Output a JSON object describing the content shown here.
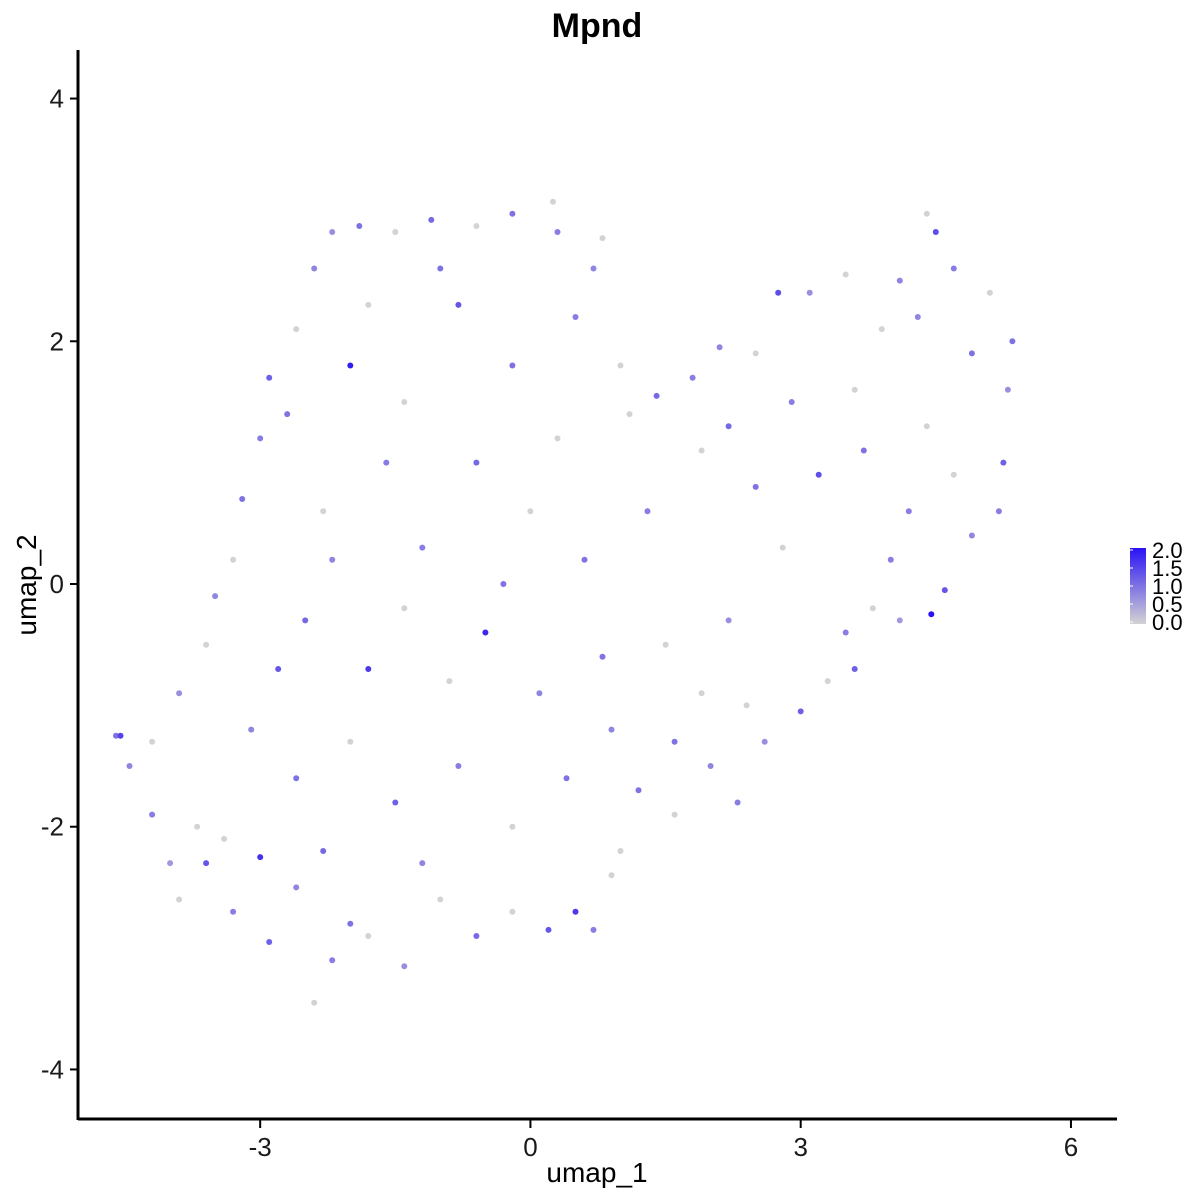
{
  "chart_data": {
    "type": "scatter",
    "title": "Mpnd",
    "xlabel": "umap_1",
    "ylabel": "umap_2",
    "xlim": [
      -5.0,
      6.5
    ],
    "ylim": [
      -4.4,
      4.4
    ],
    "x_ticks": [
      -3,
      0,
      3,
      6
    ],
    "x_tick_labels": [
      "-3",
      "0",
      "3",
      "6"
    ],
    "y_ticks": [
      -4,
      -2,
      0,
      2,
      4
    ],
    "y_tick_labels": [
      "-4",
      "-2",
      "0",
      "2",
      "4"
    ],
    "grid": false,
    "legend_position": "right",
    "color_scale": {
      "low_color": "#d3d3d3",
      "high_color": "#2a13f5",
      "min": 0.0,
      "max": 2.0,
      "breaks": [
        0.0,
        0.5,
        1.0,
        1.5,
        2.0
      ],
      "labels": [
        "0.0",
        "0.5",
        "1.0",
        "1.5",
        "2.0"
      ]
    },
    "points": [
      {
        "x": -4.6,
        "y": -1.25,
        "v": 1.0
      },
      {
        "x": -4.55,
        "y": -1.25,
        "v": 1.5
      },
      {
        "x": -4.45,
        "y": -1.5,
        "v": 0.8
      },
      {
        "x": -4.2,
        "y": -1.9,
        "v": 0.9
      },
      {
        "x": -4.0,
        "y": -2.3,
        "v": 0.6
      },
      {
        "x": -3.9,
        "y": -2.6,
        "v": 0.0
      },
      {
        "x": -3.6,
        "y": -2.3,
        "v": 1.3
      },
      {
        "x": -3.4,
        "y": -2.1,
        "v": 0.0
      },
      {
        "x": -3.0,
        "y": -2.25,
        "v": 1.7
      },
      {
        "x": -2.9,
        "y": -2.95,
        "v": 1.2
      },
      {
        "x": -2.6,
        "y": -2.5,
        "v": 0.8
      },
      {
        "x": -2.4,
        "y": -3.45,
        "v": 0.0
      },
      {
        "x": -2.2,
        "y": -3.1,
        "v": 0.9
      },
      {
        "x": -2.0,
        "y": -2.8,
        "v": 1.0
      },
      {
        "x": -1.8,
        "y": -2.9,
        "v": 0.0
      },
      {
        "x": -1.4,
        "y": -3.15,
        "v": 0.7
      },
      {
        "x": -1.0,
        "y": -2.6,
        "v": 0.0
      },
      {
        "x": -0.6,
        "y": -2.9,
        "v": 1.1
      },
      {
        "x": -0.2,
        "y": -2.7,
        "v": 0.0
      },
      {
        "x": 0.2,
        "y": -2.85,
        "v": 1.3
      },
      {
        "x": 0.5,
        "y": -2.7,
        "v": 1.6
      },
      {
        "x": 0.7,
        "y": -2.85,
        "v": 0.9
      },
      {
        "x": 1.0,
        "y": -2.2,
        "v": 0.0
      },
      {
        "x": 1.2,
        "y": -1.7,
        "v": 1.0
      },
      {
        "x": 1.6,
        "y": -1.9,
        "v": 0.0
      },
      {
        "x": 2.0,
        "y": -1.5,
        "v": 0.8
      },
      {
        "x": 2.3,
        "y": -1.8,
        "v": 0.9
      },
      {
        "x": 2.6,
        "y": -1.3,
        "v": 0.7
      },
      {
        "x": 3.0,
        "y": -1.05,
        "v": 1.2
      },
      {
        "x": 3.3,
        "y": -0.8,
        "v": 0.0
      },
      {
        "x": 3.5,
        "y": -0.4,
        "v": 0.9
      },
      {
        "x": 3.8,
        "y": -0.2,
        "v": 0.0
      },
      {
        "x": 4.1,
        "y": -0.3,
        "v": 0.6
      },
      {
        "x": 4.45,
        "y": -0.25,
        "v": 2.0
      },
      {
        "x": 4.6,
        "y": -0.05,
        "v": 1.3
      },
      {
        "x": 4.9,
        "y": 0.4,
        "v": 0.8
      },
      {
        "x": 5.2,
        "y": 0.6,
        "v": 0.9
      },
      {
        "x": 5.25,
        "y": 1.0,
        "v": 1.2
      },
      {
        "x": 5.3,
        "y": 1.6,
        "v": 0.7
      },
      {
        "x": 5.35,
        "y": 2.0,
        "v": 1.0
      },
      {
        "x": 5.1,
        "y": 2.4,
        "v": 0.0
      },
      {
        "x": 4.7,
        "y": 2.6,
        "v": 0.9
      },
      {
        "x": 4.5,
        "y": 2.9,
        "v": 1.4
      },
      {
        "x": 4.4,
        "y": 3.05,
        "v": 0.0
      },
      {
        "x": 4.1,
        "y": 2.5,
        "v": 0.8
      },
      {
        "x": 3.9,
        "y": 2.1,
        "v": 0.0
      },
      {
        "x": 3.5,
        "y": 2.55,
        "v": 0.0
      },
      {
        "x": 3.1,
        "y": 2.4,
        "v": 0.7
      },
      {
        "x": 2.75,
        "y": 2.4,
        "v": 1.4
      },
      {
        "x": 2.5,
        "y": 1.9,
        "v": 0.0
      },
      {
        "x": 2.1,
        "y": 1.95,
        "v": 0.8
      },
      {
        "x": 1.8,
        "y": 1.7,
        "v": 0.9
      },
      {
        "x": 1.4,
        "y": 1.55,
        "v": 1.1
      },
      {
        "x": 1.0,
        "y": 1.8,
        "v": 0.0
      },
      {
        "x": 0.7,
        "y": 2.6,
        "v": 0.8
      },
      {
        "x": 0.8,
        "y": 2.85,
        "v": 0.0
      },
      {
        "x": 0.3,
        "y": 2.9,
        "v": 0.9
      },
      {
        "x": 0.25,
        "y": 3.15,
        "v": 0.0
      },
      {
        "x": -0.2,
        "y": 3.05,
        "v": 1.0
      },
      {
        "x": -0.6,
        "y": 2.95,
        "v": 0.0
      },
      {
        "x": -1.1,
        "y": 3.0,
        "v": 1.1
      },
      {
        "x": -1.5,
        "y": 2.9,
        "v": 0.0
      },
      {
        "x": -1.9,
        "y": 2.95,
        "v": 1.0
      },
      {
        "x": -2.2,
        "y": 2.9,
        "v": 0.7
      },
      {
        "x": -2.4,
        "y": 2.6,
        "v": 0.8
      },
      {
        "x": -2.6,
        "y": 2.1,
        "v": 0.0
      },
      {
        "x": -2.9,
        "y": 1.7,
        "v": 1.2
      },
      {
        "x": -3.0,
        "y": 1.2,
        "v": 0.9
      },
      {
        "x": -3.2,
        "y": 0.7,
        "v": 1.0
      },
      {
        "x": -3.3,
        "y": 0.2,
        "v": 0.0
      },
      {
        "x": -3.5,
        "y": -0.1,
        "v": 0.8
      },
      {
        "x": -3.6,
        "y": -0.5,
        "v": 0.0
      },
      {
        "x": -3.9,
        "y": -0.9,
        "v": 0.7
      },
      {
        "x": -4.2,
        "y": -1.3,
        "v": 0.0
      },
      {
        "x": -2.0,
        "y": 1.8,
        "v": 1.9
      },
      {
        "x": -1.4,
        "y": 1.5,
        "v": 0.0
      },
      {
        "x": -0.8,
        "y": 2.3,
        "v": 1.3
      },
      {
        "x": -0.5,
        "y": -0.4,
        "v": 1.8
      },
      {
        "x": -0.2,
        "y": 1.8,
        "v": 1.0
      },
      {
        "x": 0.3,
        "y": 1.2,
        "v": 0.0
      },
      {
        "x": -1.2,
        "y": 0.3,
        "v": 0.9
      },
      {
        "x": -2.5,
        "y": -0.3,
        "v": 1.1
      },
      {
        "x": -1.8,
        "y": -0.7,
        "v": 1.6
      },
      {
        "x": -0.9,
        "y": -0.8,
        "v": 0.0
      },
      {
        "x": 0.1,
        "y": -0.9,
        "v": 0.8
      },
      {
        "x": 0.8,
        "y": -0.6,
        "v": 1.0
      },
      {
        "x": 1.5,
        "y": -0.5,
        "v": 0.0
      },
      {
        "x": 2.2,
        "y": -0.3,
        "v": 0.7
      },
      {
        "x": 2.8,
        "y": 0.3,
        "v": 0.0
      },
      {
        "x": 3.2,
        "y": 0.9,
        "v": 1.4
      },
      {
        "x": 3.7,
        "y": 1.1,
        "v": 1.0
      },
      {
        "x": 4.2,
        "y": 0.6,
        "v": 0.9
      },
      {
        "x": 4.4,
        "y": 1.3,
        "v": 0.0
      },
      {
        "x": 2.5,
        "y": 0.8,
        "v": 1.0
      },
      {
        "x": 1.9,
        "y": 1.1,
        "v": 0.0
      },
      {
        "x": 1.3,
        "y": 0.6,
        "v": 0.9
      },
      {
        "x": 0.6,
        "y": 0.2,
        "v": 1.0
      },
      {
        "x": 0.0,
        "y": 0.6,
        "v": 0.0
      },
      {
        "x": -0.6,
        "y": 1.0,
        "v": 1.1
      },
      {
        "x": -1.6,
        "y": 1.0,
        "v": 0.9
      },
      {
        "x": -2.3,
        "y": 0.6,
        "v": 0.0
      },
      {
        "x": -2.8,
        "y": -0.7,
        "v": 1.3
      },
      {
        "x": -3.1,
        "y": -1.2,
        "v": 0.8
      },
      {
        "x": -2.6,
        "y": -1.6,
        "v": 1.0
      },
      {
        "x": -2.0,
        "y": -1.3,
        "v": 0.0
      },
      {
        "x": -1.5,
        "y": -1.8,
        "v": 1.2
      },
      {
        "x": -0.8,
        "y": -1.5,
        "v": 0.9
      },
      {
        "x": -0.2,
        "y": -2.0,
        "v": 0.0
      },
      {
        "x": 0.4,
        "y": -1.6,
        "v": 1.0
      },
      {
        "x": -3.3,
        "y": -2.7,
        "v": 0.9
      },
      {
        "x": -3.7,
        "y": -2.0,
        "v": 0.0
      },
      {
        "x": -2.3,
        "y": -2.2,
        "v": 1.1
      },
      {
        "x": -1.2,
        "y": -2.3,
        "v": 0.8
      },
      {
        "x": 0.9,
        "y": -2.4,
        "v": 0.0
      },
      {
        "x": 1.6,
        "y": -1.3,
        "v": 1.0
      },
      {
        "x": 2.4,
        "y": -1.0,
        "v": 0.0
      },
      {
        "x": 3.6,
        "y": -0.7,
        "v": 1.2
      },
      {
        "x": 4.0,
        "y": 0.2,
        "v": 0.9
      },
      {
        "x": 4.7,
        "y": 0.9,
        "v": 0.0
      },
      {
        "x": 4.9,
        "y": 1.9,
        "v": 1.0
      },
      {
        "x": 4.3,
        "y": 2.2,
        "v": 0.8
      },
      {
        "x": 3.6,
        "y": 1.6,
        "v": 0.0
      },
      {
        "x": 2.9,
        "y": 1.5,
        "v": 0.9
      },
      {
        "x": 2.2,
        "y": 1.3,
        "v": 1.1
      },
      {
        "x": 1.1,
        "y": 1.4,
        "v": 0.0
      },
      {
        "x": 0.5,
        "y": 2.2,
        "v": 0.9
      },
      {
        "x": -1.0,
        "y": 2.6,
        "v": 1.0
      },
      {
        "x": -1.8,
        "y": 2.3,
        "v": 0.0
      },
      {
        "x": -2.7,
        "y": 1.4,
        "v": 1.0
      },
      {
        "x": -2.2,
        "y": 0.2,
        "v": 0.8
      },
      {
        "x": -1.4,
        "y": -0.2,
        "v": 0.0
      },
      {
        "x": -0.3,
        "y": 0.0,
        "v": 1.0
      },
      {
        "x": 0.9,
        "y": -1.2,
        "v": 0.8
      },
      {
        "x": 1.9,
        "y": -0.9,
        "v": 0.0
      }
    ]
  }
}
